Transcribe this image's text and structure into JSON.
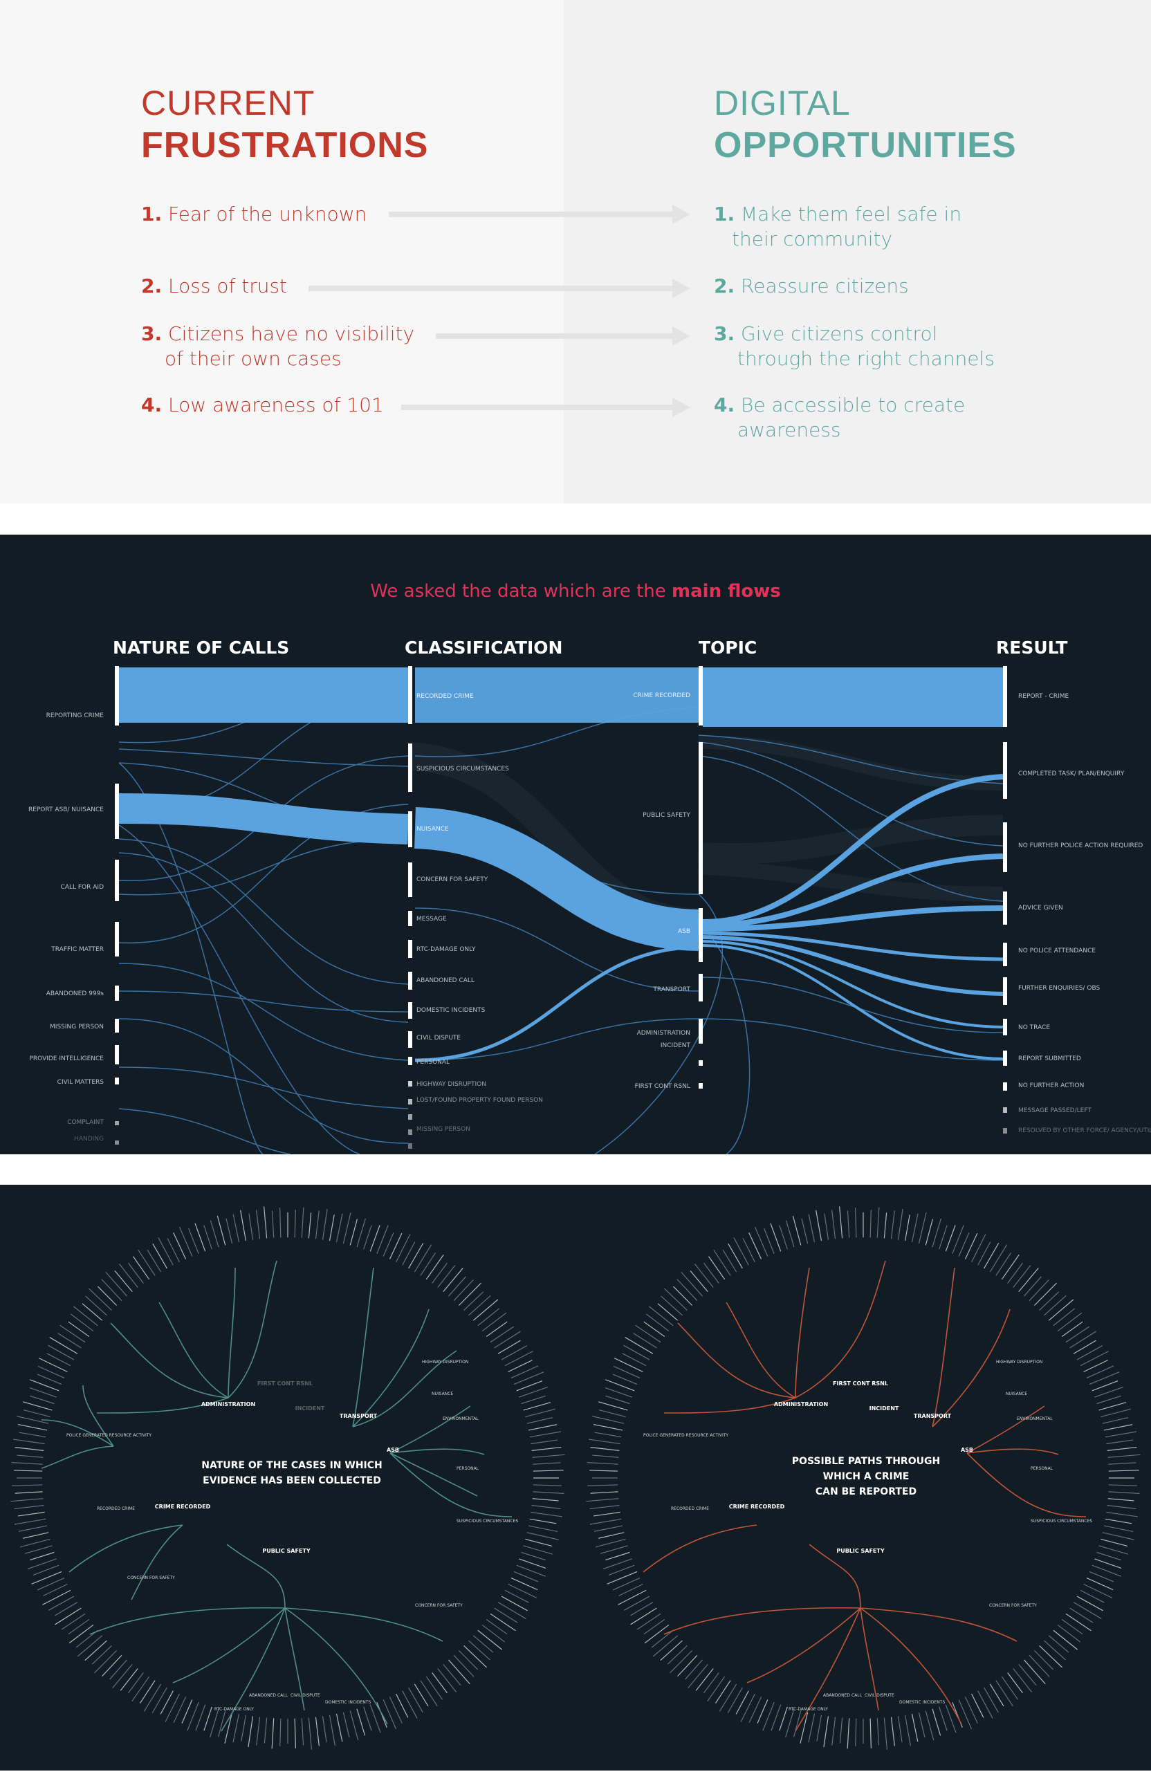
{
  "frustrations": {
    "heading_light": "CURRENT",
    "heading_bold": "FRUSTRATIONS",
    "items": [
      {
        "num": "1.",
        "lines": [
          "Fear of the unknown"
        ]
      },
      {
        "num": "2.",
        "lines": [
          "Loss of trust"
        ]
      },
      {
        "num": "3.",
        "lines": [
          "Citizens have no visibility",
          "of their own cases"
        ]
      },
      {
        "num": "4.",
        "lines": [
          "Low awareness of 101"
        ]
      }
    ]
  },
  "opportunities": {
    "heading_light": "DIGITAL",
    "heading_bold": "OPPORTUNITIES",
    "items": [
      {
        "num": "1.",
        "lines": [
          "Make them feel safe in",
          "their community"
        ]
      },
      {
        "num": "2.",
        "lines": [
          "Reassure citizens"
        ]
      },
      {
        "num": "3.",
        "lines": [
          "Give citizens control",
          "through the right channels"
        ]
      },
      {
        "num": "4.",
        "lines": [
          "Be accessible to create",
          "awareness"
        ]
      }
    ]
  },
  "sankey": {
    "title_plain": "We asked the data which are the ",
    "title_bold": "main flows",
    "columns": [
      "NATURE OF CALLS",
      "CLASSIFICATION",
      "TOPIC",
      "RESULT"
    ],
    "nature": [
      "REPORTING CRIME",
      "REPORT ASB/ NUISANCE",
      "CALL FOR AID",
      "TRAFFIC MATTER",
      "ABANDONED 999s",
      "MISSING PERSON",
      "PROVIDE INTELLIGENCE",
      "CIVIL MATTERS",
      "COMPLAINT",
      "HANDING"
    ],
    "classification": [
      "RECORDED CRIME",
      "SUSPICIOUS CIRCUMSTANCES",
      "NUISANCE",
      "CONCERN FOR SAFETY",
      "MESSAGE",
      "RTC-DAMAGE ONLY",
      "ABANDONED CALL",
      "DOMESTIC INCIDENTS",
      "CIVIL DISPUTE",
      "PERSONAL",
      "HIGHWAY DISRUPTION",
      "LOST/FOUND PROPERTY FOUND PERSON",
      "MISSING PERSON"
    ],
    "topic": [
      "CRIME RECORDED",
      "PUBLIC SAFETY",
      "ASB",
      "TRANSPORT",
      "ADMINISTRATION",
      "INCIDENT",
      "FIRST CONT RSNL"
    ],
    "result": [
      "REPORT - CRIME",
      "COMPLETED TASK/ PLAN/ENQUIRY",
      "NO FURTHER POLICE ACTION REQUIRED",
      "ADVICE GIVEN",
      "NO POLICE ATTENDANCE",
      "FURTHER ENQUIRIES/ OBS",
      "NO TRACE",
      "REPORT SUBMITTED",
      "NO FURTHER ACTION",
      "MESSAGE PASSED/LEFT",
      "RESOLVED BY OTHER FORCE/ AGENCY/UTILITY"
    ]
  },
  "radial_left": {
    "center_lines": [
      "NATURE OF THE CASES IN WHICH",
      "EVIDENCE HAS BEEN COLLECTED"
    ],
    "hubs": [
      "ADMINISTRATION",
      "TRANSPORT",
      "ASB",
      "PUBLIC SAFETY",
      "CRIME RECORDED",
      "FIRST CONT RSNL",
      "INCIDENT"
    ],
    "branches": [
      "POLICE GENERATED RESOURCE ACTIVITY",
      "RECORDED CRIME",
      "SUSPICIOUS CIRCUMSTANCES",
      "ENVIRONMENTAL",
      "PERSONAL",
      "NUISANCE",
      "HIGHWAY DISRUPTION",
      "CONCERN FOR SAFETY",
      "CIVIL DISPUTE",
      "DOMESTIC INCIDENTS",
      "ABANDONED CALL",
      "RTC-DAMAGE ONLY",
      "CONCERN FOR SAFETY"
    ]
  },
  "radial_right": {
    "center_lines": [
      "POSSIBLE PATHS THROUGH",
      "WHICH A CRIME",
      "CAN BE REPORTED"
    ],
    "hubs": [
      "ADMINISTRATION",
      "TRANSPORT",
      "ASB",
      "PUBLIC SAFETY",
      "CRIME RECORDED",
      "FIRST CONT RSNL",
      "INCIDENT"
    ],
    "branches": [
      "POLICE GENERATED RESOURCE ACTIVITY",
      "RECORDED CRIME",
      "SUSPICIOUS CIRCUMSTANCES",
      "ENVIRONMENTAL",
      "PERSONAL",
      "NUISANCE",
      "HIGHWAY DISRUPTION",
      "CONCERN FOR SAFETY",
      "CIVIL DISPUTE",
      "DOMESTIC INCIDENTS",
      "ABANDONED CALL",
      "RTC-DAMAGE ONLY"
    ]
  },
  "colors": {
    "red": "#c0392b",
    "teal": "#5fa8a0",
    "dark_bg": "#111c24",
    "flow_blue": "#5ba3e0",
    "title_pink": "#e3315a",
    "left_tree": "#4f8f86",
    "right_tree": "#c0553a"
  }
}
